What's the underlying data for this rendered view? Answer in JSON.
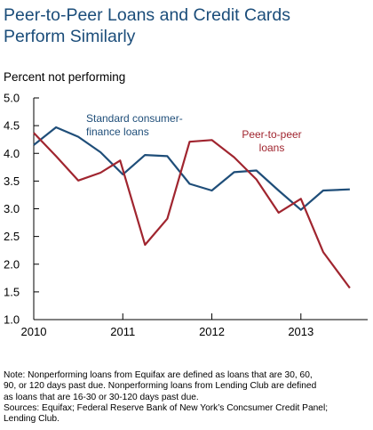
{
  "chart_data": {
    "type": "line",
    "title_lines": [
      "Peer-to-Peer Loans and Credit Cards",
      "Perform Similarly"
    ],
    "ylabel": "Percent not performing",
    "xlabel": "",
    "ylim": [
      1.0,
      5.0
    ],
    "yticks": [
      "1.0",
      "1.5",
      "2.0",
      "2.5",
      "3.0",
      "3.5",
      "4.0",
      "4.5",
      "5.0"
    ],
    "xlim": [
      2010.0,
      2013.75
    ],
    "xticks": [
      "2010",
      "2011",
      "2012",
      "2013"
    ],
    "grid": false,
    "series": [
      {
        "name_lines": [
          "Standard consumer-",
          "finance loans"
        ],
        "color": "#1f4e79",
        "x": [
          2010.0,
          2010.25,
          2010.5,
          2010.75,
          2011.0,
          2011.25,
          2011.5,
          2011.75,
          2012.0,
          2012.25,
          2012.5,
          2012.75,
          2013.0,
          2013.25,
          2013.55
        ],
        "values": [
          4.15,
          4.47,
          4.3,
          4.02,
          3.62,
          3.97,
          3.95,
          3.45,
          3.33,
          3.66,
          3.69,
          3.33,
          2.98,
          3.33,
          3.35
        ]
      },
      {
        "name_lines": [
          "Peer-to-peer",
          "loans"
        ],
        "color": "#a0252f",
        "x": [
          2010.0,
          2010.25,
          2010.5,
          2010.75,
          2010.97,
          2011.25,
          2011.5,
          2011.75,
          2012.0,
          2012.25,
          2012.5,
          2012.75,
          2013.0,
          2013.25,
          2013.55
        ],
        "values": [
          4.37,
          3.95,
          3.51,
          3.65,
          3.87,
          2.35,
          2.82,
          4.21,
          4.24,
          3.93,
          3.53,
          2.93,
          3.18,
          2.22,
          1.57
        ]
      }
    ]
  },
  "notes": [
    "Note: Nonperforming loans from Equifax are defined as loans that are 30, 60,",
    "90, or 120 days past due. Nonperforming loans from Lending Club are defined",
    "as loans that are 16-30 or 30-120 days past due.",
    "Sources: Equifax; Federal Reserve Bank of New York’s Concsumer Credit Panel;",
    "Lending Club."
  ]
}
